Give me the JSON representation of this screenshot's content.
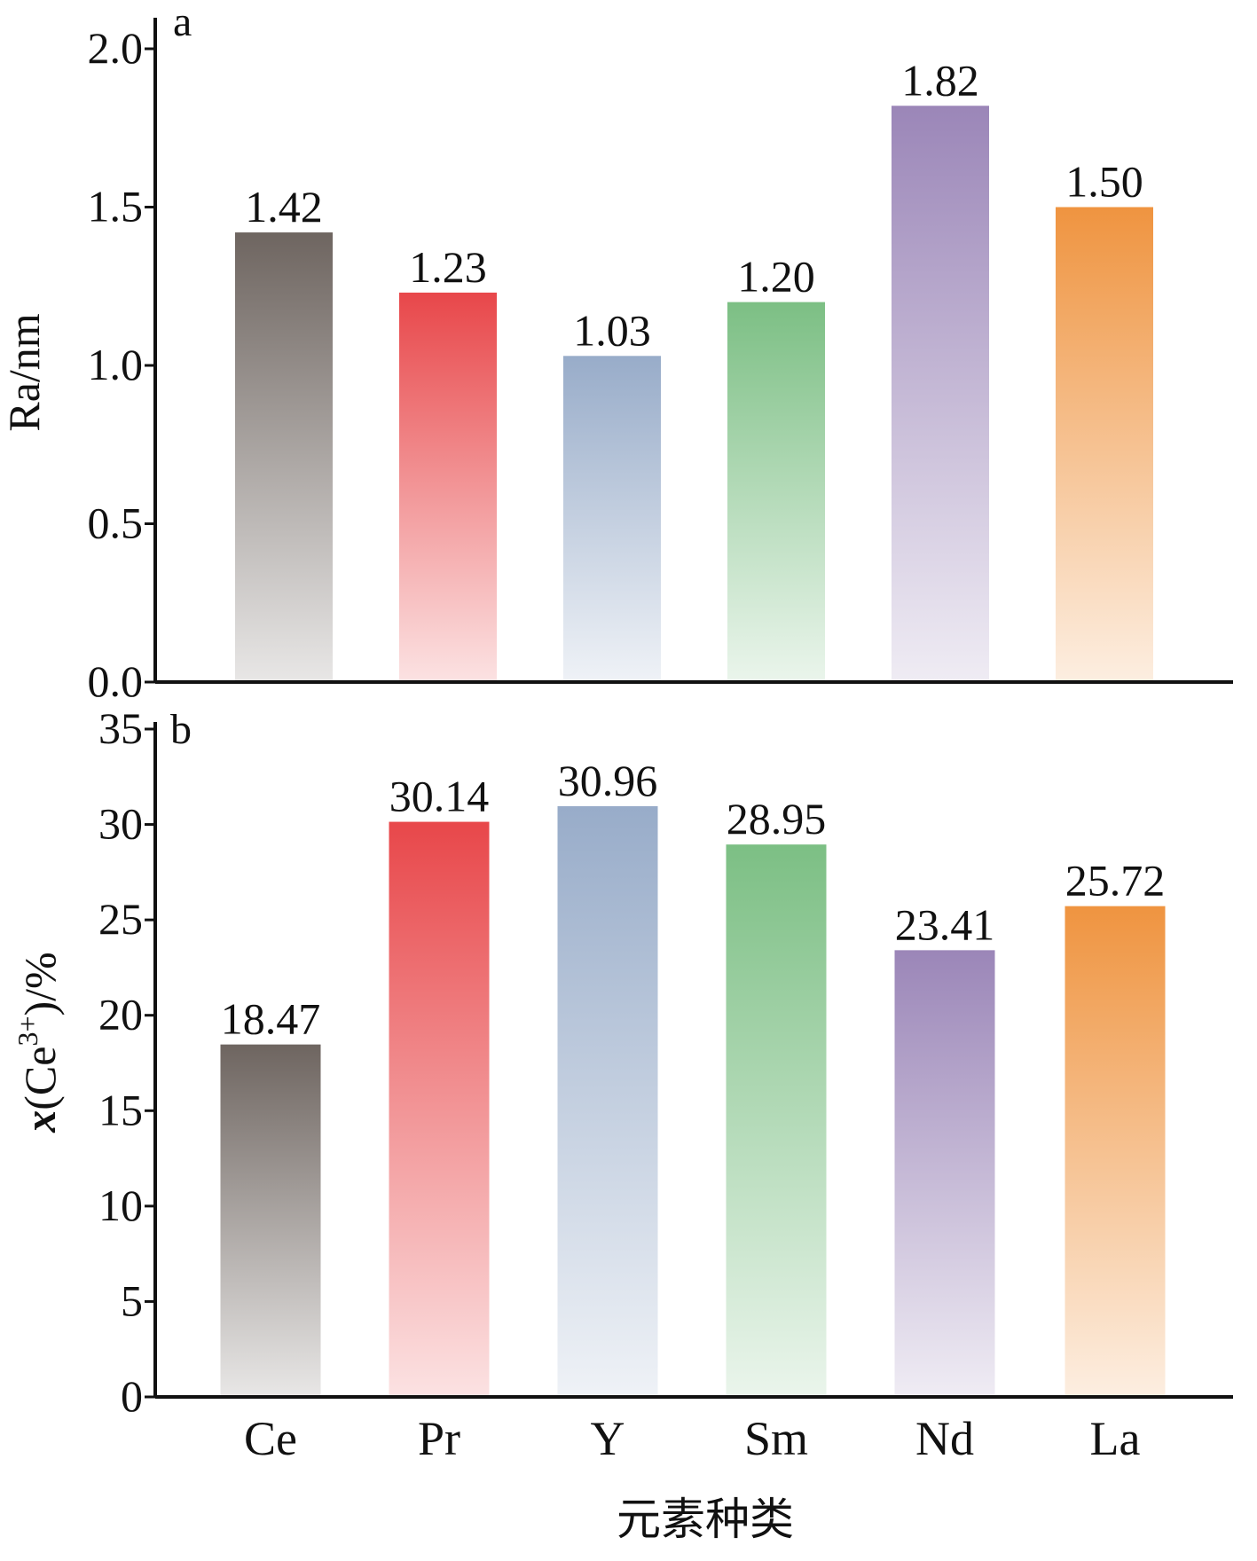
{
  "chart_data": [
    {
      "type": "bar",
      "panel_label": "a",
      "categories": [
        "Ce",
        "Pr",
        "Y",
        "Sm",
        "Nd",
        "La"
      ],
      "values": [
        1.42,
        1.23,
        1.03,
        1.2,
        1.82,
        1.5
      ],
      "value_labels": [
        "1.42",
        "1.23",
        "1.03",
        "1.20",
        "1.82",
        "1.50"
      ],
      "ylabel": "Ra/nm",
      "ylim": [
        0,
        2.0
      ],
      "yticks": [
        "0.0",
        "0.5",
        "1.0",
        "1.5",
        "2.0"
      ],
      "grid": false,
      "colors": [
        "#6e6560",
        "#e8474a",
        "#98acc9",
        "#7cbf84",
        "#9b86b8",
        "#ef9440"
      ]
    },
    {
      "type": "bar",
      "panel_label": "b",
      "categories": [
        "Ce",
        "Pr",
        "Y",
        "Sm",
        "Nd",
        "La"
      ],
      "values": [
        18.47,
        30.14,
        30.96,
        28.95,
        23.41,
        25.72
      ],
      "value_labels": [
        "18.47",
        "30.14",
        "30.96",
        "28.95",
        "23.41",
        "25.72"
      ],
      "ylabel_parts": {
        "var": "x",
        "open": "(Ce",
        "sup": "3+",
        "close": ")/%"
      },
      "xlabel": "元素种类",
      "ylim": [
        0,
        35
      ],
      "yticks": [
        "0",
        "5",
        "10",
        "15",
        "20",
        "25",
        "30",
        "35"
      ],
      "grid": false,
      "colors": [
        "#6e6560",
        "#e8474a",
        "#98acc9",
        "#7cbf84",
        "#9b86b8",
        "#ef9440"
      ]
    }
  ]
}
